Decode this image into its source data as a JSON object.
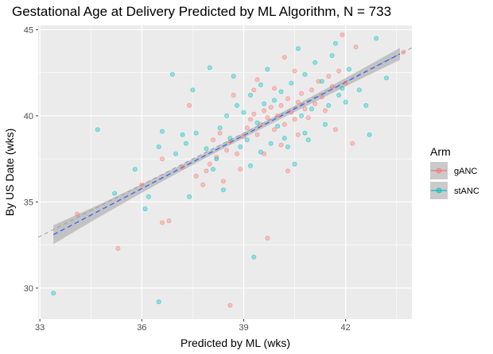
{
  "chart_data": {
    "type": "scatter",
    "title": "Gestational Age at Delivery Predicted by ML Algorithm, N = 733",
    "xlabel": "Predicted by ML (wks)",
    "ylabel": "By US Date (wks)",
    "xlim": [
      32.95,
      43.95
    ],
    "ylim": [
      28.2,
      45.25
    ],
    "x_ticks": [
      33,
      36,
      39,
      42
    ],
    "y_ticks": [
      30,
      35,
      40,
      45
    ],
    "grid": true,
    "legend": {
      "title": "Arm",
      "position": "right",
      "entries": [
        "gANC",
        "stANC"
      ]
    },
    "colors": {
      "gANC": "#F8766D",
      "stANC": "#00BFC4",
      "fit_line": "#3366FF",
      "ci_band": "#999999",
      "identity_line": "#999999",
      "panel": "#EBEBEB"
    },
    "fit": {
      "x_range": [
        33.4,
        43.6
      ],
      "y_range": [
        33.1,
        43.6
      ],
      "ci_half_width_ends": [
        0.55,
        0.35
      ],
      "ci_half_width_center": 0.15
    },
    "identity_line": {
      "slope": 1,
      "intercept": 0,
      "style": "dashed"
    },
    "series": [
      {
        "name": "gANC",
        "points": [
          [
            34.1,
            34.3
          ],
          [
            35.3,
            32.3
          ],
          [
            36.0,
            36.0
          ],
          [
            36.6,
            33.8
          ],
          [
            36.8,
            33.9
          ],
          [
            36.6,
            37.5
          ],
          [
            37.2,
            37.0
          ],
          [
            37.6,
            36.5
          ],
          [
            37.8,
            36.0
          ],
          [
            38.0,
            37.2
          ],
          [
            38.2,
            37.6
          ],
          [
            38.5,
            38.0
          ],
          [
            38.3,
            39.0
          ],
          [
            38.6,
            38.5
          ],
          [
            38.8,
            37.8
          ],
          [
            38.9,
            36.9
          ],
          [
            39.0,
            38.8
          ],
          [
            39.1,
            39.3
          ],
          [
            39.2,
            39.8
          ],
          [
            39.3,
            40.1
          ],
          [
            39.4,
            38.9
          ],
          [
            39.5,
            39.5
          ],
          [
            39.6,
            40.3
          ],
          [
            39.7,
            39.9
          ],
          [
            39.8,
            40.5
          ],
          [
            39.9,
            39.2
          ],
          [
            40.0,
            40.0
          ],
          [
            40.1,
            40.6
          ],
          [
            40.2,
            39.5
          ],
          [
            40.3,
            41.0
          ],
          [
            40.4,
            40.2
          ],
          [
            40.5,
            39.8
          ],
          [
            40.6,
            40.8
          ],
          [
            40.7,
            41.3
          ],
          [
            40.8,
            40.4
          ],
          [
            40.9,
            39.9
          ],
          [
            41.0,
            41.5
          ],
          [
            41.1,
            40.7
          ],
          [
            41.2,
            42.0
          ],
          [
            41.3,
            41.1
          ],
          [
            41.4,
            40.3
          ],
          [
            41.5,
            42.3
          ],
          [
            41.6,
            41.7
          ],
          [
            41.8,
            42.6
          ],
          [
            42.0,
            41.9
          ],
          [
            42.3,
            44.0
          ],
          [
            41.9,
            44.7
          ],
          [
            40.2,
            43.4
          ],
          [
            39.4,
            42.1
          ],
          [
            39.9,
            41.6
          ],
          [
            40.6,
            38.9
          ],
          [
            40.3,
            36.8
          ],
          [
            39.7,
            32.9
          ],
          [
            38.6,
            29.0
          ],
          [
            37.9,
            36.8
          ],
          [
            38.4,
            36.2
          ],
          [
            39.6,
            37.8
          ],
          [
            40.5,
            42.6
          ],
          [
            41.7,
            39.2
          ],
          [
            43.7,
            43.7
          ],
          [
            37.4,
            40.6
          ],
          [
            38.7,
            41.2
          ],
          [
            39.3,
            41.5
          ],
          [
            42.2,
            38.4
          ],
          [
            40.1,
            38.3
          ],
          [
            38.1,
            38.6
          ]
        ]
      },
      {
        "name": "stANC",
        "points": [
          [
            33.4,
            29.7
          ],
          [
            34.7,
            39.2
          ],
          [
            35.2,
            35.5
          ],
          [
            35.8,
            36.9
          ],
          [
            36.1,
            34.6
          ],
          [
            36.5,
            38.2
          ],
          [
            36.6,
            39.1
          ],
          [
            36.9,
            42.4
          ],
          [
            36.5,
            29.2
          ],
          [
            37.0,
            37.8
          ],
          [
            37.3,
            38.4
          ],
          [
            37.4,
            35.3
          ],
          [
            37.6,
            39.0
          ],
          [
            37.9,
            38.1
          ],
          [
            38.1,
            36.9
          ],
          [
            38.2,
            37.5
          ],
          [
            38.3,
            39.3
          ],
          [
            38.5,
            40.0
          ],
          [
            38.6,
            38.7
          ],
          [
            38.7,
            42.3
          ],
          [
            38.9,
            38.2
          ],
          [
            39.0,
            40.2
          ],
          [
            39.1,
            38.6
          ],
          [
            39.2,
            41.2
          ],
          [
            39.3,
            31.8
          ],
          [
            39.4,
            39.6
          ],
          [
            39.5,
            37.9
          ],
          [
            39.6,
            40.7
          ],
          [
            39.8,
            38.4
          ],
          [
            39.9,
            40.9
          ],
          [
            40.0,
            39.4
          ],
          [
            40.1,
            41.4
          ],
          [
            40.2,
            38.7
          ],
          [
            40.4,
            41.9
          ],
          [
            40.5,
            37.2
          ],
          [
            40.7,
            40.0
          ],
          [
            40.8,
            42.4
          ],
          [
            40.9,
            38.6
          ],
          [
            41.0,
            40.4
          ],
          [
            41.1,
            43.1
          ],
          [
            41.3,
            42.0
          ],
          [
            41.5,
            40.6
          ],
          [
            41.6,
            43.5
          ],
          [
            41.8,
            41.2
          ],
          [
            42.0,
            40.8
          ],
          [
            42.1,
            42.7
          ],
          [
            42.4,
            41.5
          ],
          [
            42.7,
            38.9
          ],
          [
            42.9,
            44.5
          ],
          [
            43.2,
            42.2
          ],
          [
            38.0,
            42.8
          ],
          [
            37.5,
            41.5
          ],
          [
            40.6,
            43.9
          ],
          [
            41.4,
            39.5
          ],
          [
            39.7,
            42.7
          ],
          [
            38.4,
            35.7
          ],
          [
            36.2,
            35.3
          ],
          [
            37.2,
            38.9
          ],
          [
            40.3,
            38.2
          ],
          [
            39.2,
            37.1
          ],
          [
            41.7,
            44.2
          ],
          [
            42.6,
            40.6
          ],
          [
            38.8,
            40.6
          ],
          [
            39.5,
            41.8
          ],
          [
            40.8,
            39.0
          ],
          [
            41.9,
            41.6
          ]
        ]
      }
    ]
  }
}
